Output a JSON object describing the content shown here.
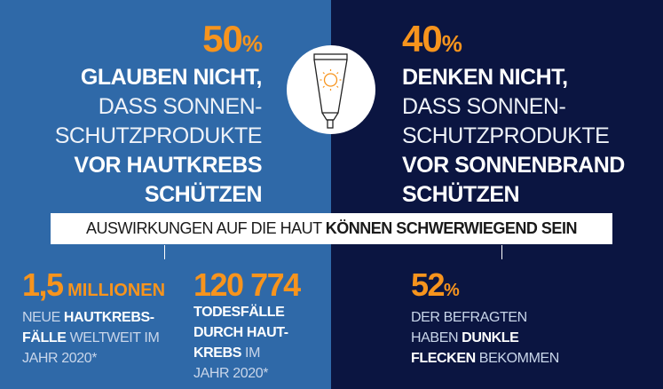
{
  "colors": {
    "left_bg": "#2f69a8",
    "right_bg": "#0b1541",
    "accent": "#f7941d"
  },
  "left": {
    "number": "50",
    "pct": "%",
    "line1": "GLAUBEN NICHT,",
    "line2": "DASS SONNEN-",
    "line3": "SCHUTZPRODUKTE",
    "line4": "VOR HAUTKREBS",
    "line5": "SCHÜTZEN"
  },
  "right": {
    "number": "40",
    "pct": "%",
    "line1": "DENKEN NICHT,",
    "line2": "DASS SONNEN-",
    "line3": "SCHUTZPRODUKTE",
    "line4": "VOR SONNENBRAND",
    "line5": "SCHÜTZEN"
  },
  "icon": "sunscreen-tube-icon",
  "banner": {
    "light": "AUSWIRKUNGEN AUF DIE HAUT ",
    "bold": "KÖNNEN SCHWERWIEGEND SEIN"
  },
  "stats": [
    {
      "number": "1,5",
      "unit": " MILLIONEN",
      "t1": "NEUE ",
      "t2": "HAUTKREBS-",
      "t3": "FÄLLE",
      "t4": " WELTWEIT IM",
      "t5": "JAHR 2020*"
    },
    {
      "number": "120 774",
      "t1": "TODESFÄLLE",
      "t2": "DURCH HAUT-",
      "t3": "KREBS",
      "t4": " IM",
      "t5": "JAHR 2020*"
    },
    {
      "number": "52",
      "unit": "%",
      "t1": "DER BEFRAGTEN",
      "t2": "HABEN ",
      "t3": "DUNKLE",
      "t4": "FLECKEN",
      "t5": " BEKOMMEN"
    }
  ]
}
